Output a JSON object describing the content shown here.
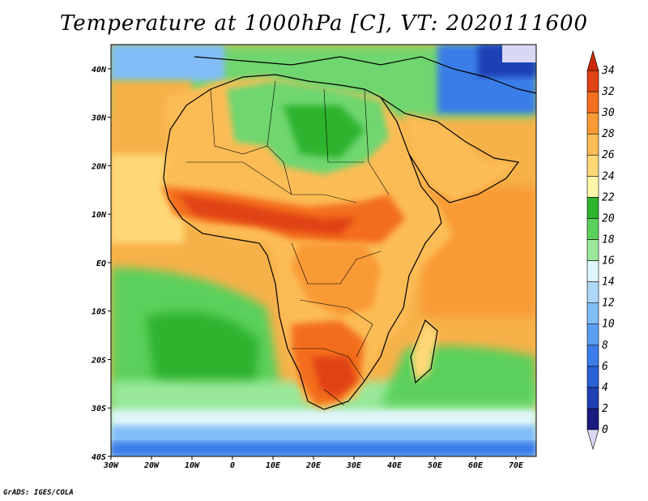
{
  "title": "Temperature at 1000hPa [C], VT: 2020111600",
  "credit": "GrADS: IGES/COLA",
  "map": {
    "lon_range": [
      -30,
      75
    ],
    "lat_range": [
      -40,
      45
    ],
    "lon_ticks": [
      {
        "value": -30,
        "label": "30W"
      },
      {
        "value": -20,
        "label": "20W"
      },
      {
        "value": -10,
        "label": "10W"
      },
      {
        "value": 0,
        "label": "0"
      },
      {
        "value": 10,
        "label": "10E"
      },
      {
        "value": 20,
        "label": "20E"
      },
      {
        "value": 30,
        "label": "30E"
      },
      {
        "value": 40,
        "label": "40E"
      },
      {
        "value": 50,
        "label": "50E"
      },
      {
        "value": 60,
        "label": "60E"
      },
      {
        "value": 70,
        "label": "70E"
      }
    ],
    "lat_ticks": [
      {
        "value": 40,
        "label": "40N"
      },
      {
        "value": 30,
        "label": "30N"
      },
      {
        "value": 20,
        "label": "20N"
      },
      {
        "value": 10,
        "label": "10N"
      },
      {
        "value": 0,
        "label": "EQ"
      },
      {
        "value": -10,
        "label": "10S"
      },
      {
        "value": -20,
        "label": "20S"
      },
      {
        "value": -30,
        "label": "30S"
      },
      {
        "value": -40,
        "label": "40S"
      }
    ]
  },
  "colorbar": {
    "levels": [
      0,
      2,
      4,
      6,
      8,
      10,
      12,
      14,
      16,
      18,
      20,
      22,
      24,
      26,
      28,
      30,
      32,
      34
    ],
    "colors": [
      "#1a1a80",
      "#1f3fb4",
      "#2a5fd6",
      "#3b7de8",
      "#5a9ff2",
      "#82bdf7",
      "#aed8fa",
      "#dff4fb",
      "#9ae89a",
      "#5cd05c",
      "#2db32d",
      "#fff6a8",
      "#fed877",
      "#fcbc55",
      "#f99a35",
      "#f36e1e",
      "#e04314"
    ],
    "low_end_color": "#d8d8f4",
    "high_end_color": "#c82a0a"
  }
}
